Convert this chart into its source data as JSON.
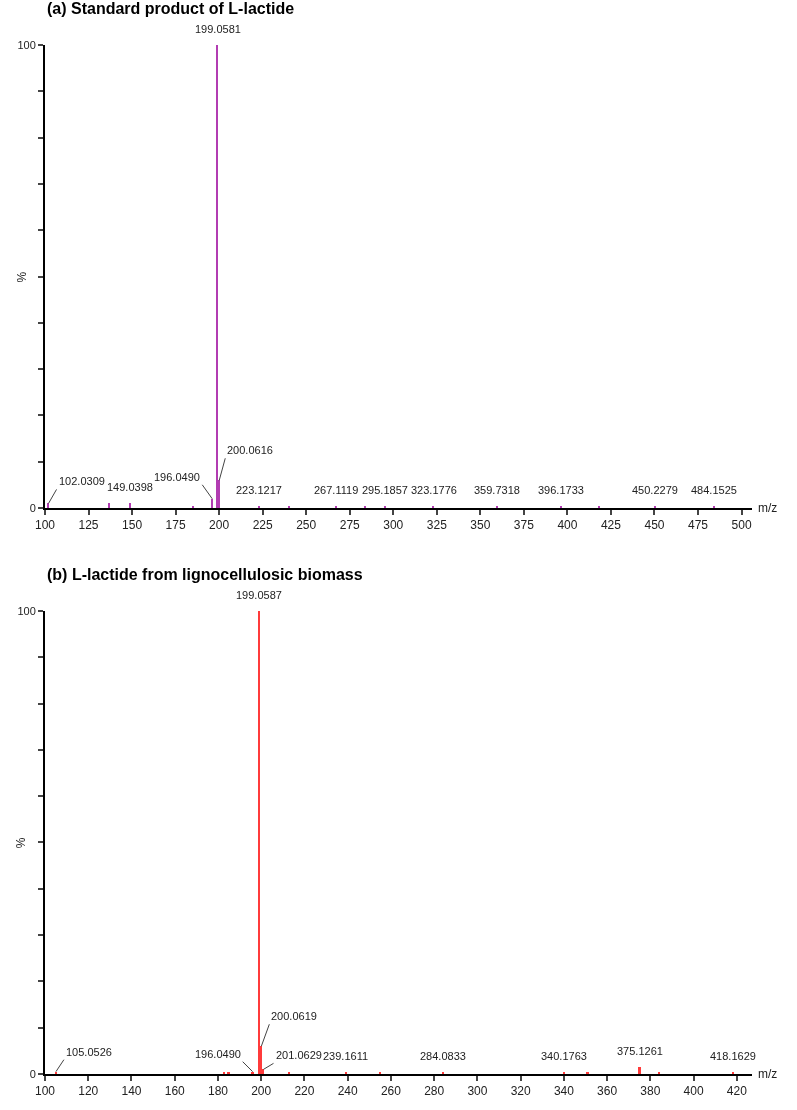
{
  "chart_data": [
    {
      "type": "bar",
      "title": "(a) Standard product of L-lactide",
      "xlabel": "m/z",
      "ylabel": "%",
      "x": [
        102.0309,
        137,
        149.0398,
        185,
        196.049,
        199.0581,
        200.0616,
        223.1217,
        240,
        267.1119,
        284,
        295.1857,
        323.1776,
        359.7318,
        396.1733,
        418,
        450.2279,
        484.1525
      ],
      "series": [
        {
          "color": "#b23cb2",
          "values": [
            1,
            1,
            1,
            0.5,
            2,
            100,
            6,
            0.5,
            0.5,
            0.5,
            0.5,
            0.5,
            0.5,
            0.5,
            0.5,
            0.5,
            0.5,
            0.5
          ]
        }
      ],
      "xlim": [
        100,
        506
      ],
      "xticks": [
        100,
        125,
        150,
        175,
        200,
        225,
        250,
        275,
        300,
        325,
        350,
        375,
        400,
        425,
        450,
        475,
        500
      ],
      "ylim": [
        0,
        100
      ],
      "yticks": [
        0,
        {
          "value": 10,
          "label": null
        },
        {
          "value": 20,
          "label": null
        },
        {
          "value": 30,
          "label": null
        },
        {
          "value": 40,
          "label": null
        },
        {
          "value": 50,
          "label": null
        },
        {
          "value": 60,
          "label": null
        },
        {
          "value": 70,
          "label": null
        },
        {
          "value": 80,
          "label": null
        },
        {
          "value": 90,
          "label": null
        },
        100
      ],
      "annotations": [
        {
          "text": "102.0309",
          "x": 102.0309,
          "y": 1
        },
        {
          "text": "149.0398",
          "x": 149.0398,
          "y": 1
        },
        {
          "text": "196.0490",
          "x": 196.049,
          "y": 2
        },
        {
          "text": "199.0581",
          "x": 199.0581,
          "y": 100
        },
        {
          "text": "200.0616",
          "x": 200.0616,
          "y": 6
        },
        {
          "text": "223.1217",
          "x": 223.1217,
          "y": 0.5
        },
        {
          "text": "267.1119",
          "x": 267.1119,
          "y": 0.5
        },
        {
          "text": "295.1857",
          "x": 295.1857,
          "y": 0.5
        },
        {
          "text": "323.1776",
          "x": 323.1776,
          "y": 0.5
        },
        {
          "text": "359.7318",
          "x": 359.7318,
          "y": 0.5
        },
        {
          "text": "396.1733",
          "x": 396.1733,
          "y": 0.5
        },
        {
          "text": "450.2279",
          "x": 450.2279,
          "y": 0.5
        },
        {
          "text": "484.1525",
          "x": 484.1525,
          "y": 0.5
        }
      ]
    },
    {
      "type": "bar",
      "title": "(b) L-lactide from lignocellulosic biomass",
      "xlabel": "m/z",
      "ylabel": "%",
      "x": [
        105.0526,
        183,
        185,
        196.049,
        199.0587,
        200.0619,
        201.0629,
        213,
        239.1611,
        255,
        284.0833,
        340.1763,
        351,
        375.1261,
        384,
        418.1629
      ],
      "series": [
        {
          "color": "#ff3b3b",
          "values": [
            0.5,
            0.5,
            0.5,
            0.5,
            100,
            6,
            1,
            0.5,
            0.5,
            0.5,
            0.5,
            0.5,
            0.5,
            1.5,
            0.5,
            0.5
          ]
        }
      ],
      "xlim": [
        100,
        427
      ],
      "xticks": [
        100,
        120,
        140,
        160,
        180,
        200,
        220,
        240,
        260,
        280,
        300,
        320,
        340,
        360,
        380,
        400,
        420
      ],
      "ylim": [
        0,
        100
      ],
      "yticks": [
        0,
        {
          "value": 10,
          "label": null
        },
        {
          "value": 20,
          "label": null
        },
        {
          "value": 30,
          "label": null
        },
        {
          "value": 40,
          "label": null
        },
        {
          "value": 50,
          "label": null
        },
        {
          "value": 60,
          "label": null
        },
        {
          "value": 70,
          "label": null
        },
        {
          "value": 80,
          "label": null
        },
        {
          "value": 90,
          "label": null
        },
        100
      ],
      "annotations": [
        {
          "text": "105.0526",
          "x": 105.0526,
          "y": 0.5
        },
        {
          "text": "196.0490",
          "x": 196.049,
          "y": 0.5
        },
        {
          "text": "199.0587",
          "x": 199.0587,
          "y": 100
        },
        {
          "text": "200.0619",
          "x": 200.0619,
          "y": 6
        },
        {
          "text": "201.0629",
          "x": 201.0629,
          "y": 1
        },
        {
          "text": "239.1611",
          "x": 239.1611,
          "y": 0.5
        },
        {
          "text": "284.0833",
          "x": 284.0833,
          "y": 0.5
        },
        {
          "text": "340.1763",
          "x": 340.1763,
          "y": 0.5
        },
        {
          "text": "375.1261",
          "x": 375.1261,
          "y": 1.5
        },
        {
          "text": "418.1629",
          "x": 418.1629,
          "y": 0.5
        }
      ]
    }
  ]
}
